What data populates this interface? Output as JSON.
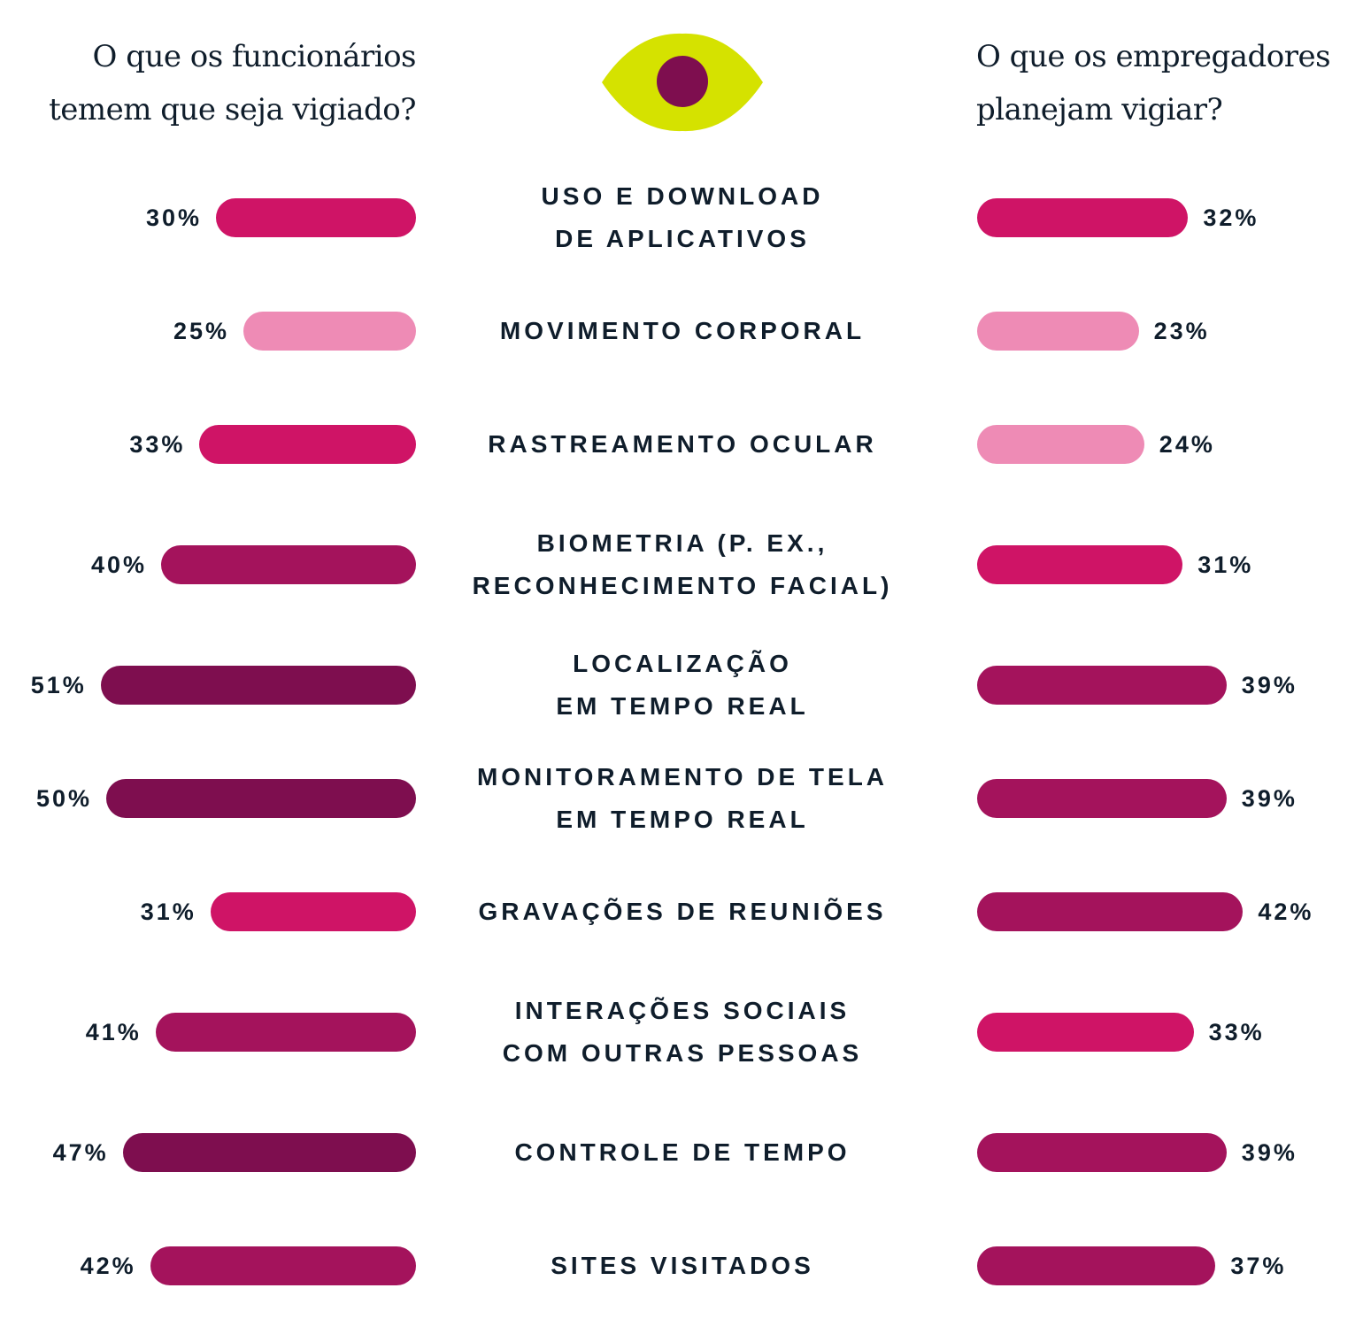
{
  "header": {
    "left_question": [
      "O que os funcionários",
      "temem que seja vigiado?"
    ],
    "right_question": [
      "O que os empregadores",
      "planejam vigiar?"
    ],
    "eye_icon": {
      "outer": "#D5E200",
      "iris": "#7E0E4F"
    }
  },
  "colors": {
    "light": "#EE8BB5",
    "pink": "#CF1466",
    "magenta": "#A4135C",
    "dark": "#7E0E4F",
    "text": "#0F1D2B"
  },
  "chart_data": {
    "type": "bar",
    "orientation": "horizontal-butterfly",
    "series": [
      {
        "name": "O que os funcionários temem que seja vigiado?",
        "side": "left",
        "values": [
          30,
          25,
          33,
          40,
          51,
          50,
          31,
          41,
          47,
          42
        ],
        "labels": [
          "30%",
          "25%",
          "33%",
          "40%",
          "51%",
          "50%",
          "31%",
          "41%",
          "47%",
          "42%"
        ],
        "color_keys": [
          "pink",
          "light",
          "pink",
          "magenta",
          "dark",
          "dark",
          "pink",
          "magenta",
          "dark",
          "magenta"
        ]
      },
      {
        "name": "O que os empregadores planejam vigiar?",
        "side": "right",
        "values": [
          32,
          23,
          24,
          31,
          39,
          39,
          42,
          33,
          39,
          37
        ],
        "labels": [
          "32%",
          "23%",
          "24%",
          "31%",
          "39%",
          "39%",
          "42%",
          "33%",
          "39%",
          "37%"
        ],
        "color_keys": [
          "pink",
          "light",
          "light",
          "pink",
          "magenta",
          "magenta",
          "magenta",
          "pink",
          "magenta",
          "magenta"
        ]
      }
    ],
    "categories": [
      [
        "USO E DOWNLOAD",
        "DE APLICATIVOS"
      ],
      [
        "MOVIMENTO CORPORAL"
      ],
      [
        "RASTREAMENTO OCULAR"
      ],
      [
        "BIOMETRIA (P. EX.,",
        "RECONHECIMENTO FACIAL)"
      ],
      [
        "LOCALIZAÇÃO",
        "EM TEMPO REAL"
      ],
      [
        "MONITORAMENTO DE TELA",
        "EM TEMPO REAL"
      ],
      [
        "GRAVAÇÕES DE REUNIÕES"
      ],
      [
        "INTERAÇÕES SOCIAIS",
        "COM OUTRAS PESSOAS"
      ],
      [
        "CONTROLE DE TEMPO"
      ],
      [
        "SITES VISITADOS"
      ]
    ],
    "unit": "%",
    "grid": false,
    "legend": "none"
  }
}
